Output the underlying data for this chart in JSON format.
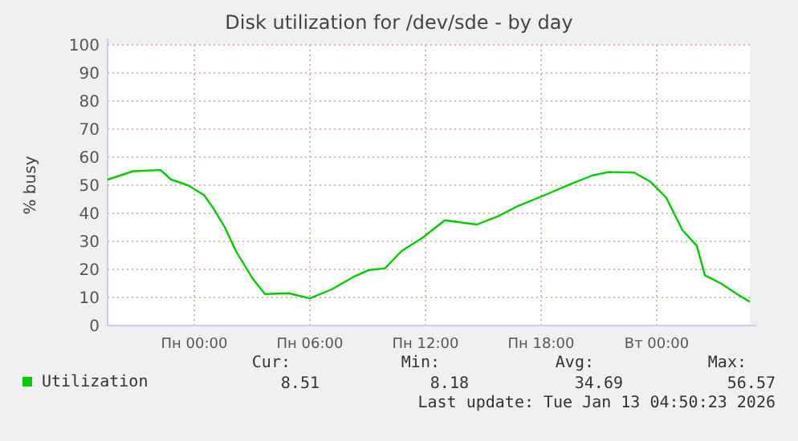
{
  "chart_data": {
    "type": "line",
    "title": "Disk utilization for /dev/sde - by day",
    "ylabel": "% busy",
    "x": [
      "2026-01-11T19:30",
      "2026-01-11T20:50",
      "2026-01-11T22:15",
      "2026-01-11T22:48",
      "2026-01-11T23:40",
      "2026-01-12T00:30",
      "2026-01-12T01:00",
      "2026-01-12T01:35",
      "2026-01-12T02:10",
      "2026-01-12T03:00",
      "2026-01-12T03:40",
      "2026-01-12T04:54",
      "2026-01-12T06:00",
      "2026-01-12T07:10",
      "2026-01-12T08:15",
      "2026-01-12T09:05",
      "2026-01-12T09:54",
      "2026-01-12T10:45",
      "2026-01-12T11:50",
      "2026-01-12T13:00",
      "2026-01-12T14:40",
      "2026-01-12T15:45",
      "2026-01-12T16:50",
      "2026-01-12T18:12",
      "2026-01-12T19:30",
      "2026-01-12T20:40",
      "2026-01-12T21:30",
      "2026-01-12T22:50",
      "2026-01-12T23:40",
      "2026-01-13T00:30",
      "2026-01-13T01:20",
      "2026-01-13T02:05",
      "2026-01-13T02:30",
      "2026-01-13T03:20",
      "2026-01-13T04:10",
      "2026-01-13T04:50"
    ],
    "series": [
      {
        "name": "Utilization",
        "color": "#00cc00",
        "values": [
          52,
          55,
          55.4,
          52,
          50,
          46.5,
          41.7,
          35,
          26.5,
          17,
          11.2,
          11.5,
          9.7,
          13,
          17.3,
          19.8,
          20.4,
          26.5,
          31.2,
          37.5,
          36,
          38.9,
          42.7,
          46.5,
          50.3,
          53.5,
          54.7,
          54.5,
          51.3,
          45.5,
          34,
          28.4,
          17.9,
          15,
          11.2,
          8.4
        ]
      }
    ],
    "xlim": [
      "2026-01-11T19:30",
      "2026-01-13T04:50"
    ],
    "xticks": [
      {
        "value": "2026-01-12T00:00",
        "label": "Пн 00:00"
      },
      {
        "value": "2026-01-12T06:00",
        "label": "Пн 06:00"
      },
      {
        "value": "2026-01-12T12:00",
        "label": "Пн 12:00"
      },
      {
        "value": "2026-01-12T18:00",
        "label": "Пн 18:00"
      },
      {
        "value": "2026-01-13T00:00",
        "label": "Вт 00:00"
      }
    ],
    "ylim": [
      0,
      100
    ],
    "yticks": [
      0,
      10,
      20,
      30,
      40,
      50,
      60,
      70,
      80,
      90,
      100
    ],
    "grid": true,
    "legend": "bottom left",
    "marker": "none",
    "line_style": "solid",
    "annotations": [
      "Cur:",
      "Min:",
      "Avg:",
      "Max:",
      "8.51",
      "8.18",
      "34.69",
      "56.57",
      "Last update: Tue Jan 13 04:50:23 2026"
    ]
  }
}
